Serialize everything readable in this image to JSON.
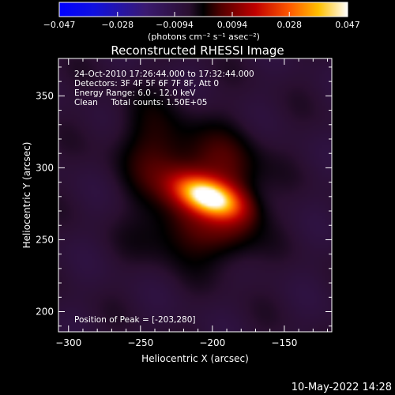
{
  "colorbar": {
    "ticks": [
      "−0.047",
      "−0.028",
      "−0.0094",
      "0.0094",
      "0.028",
      "0.047"
    ],
    "tick_values": [
      -0.047,
      -0.028,
      -0.0094,
      0.0094,
      0.028,
      0.047
    ],
    "range": [
      -0.047,
      0.047
    ],
    "units": "(photons cm⁻² s⁻¹ asec⁻²)"
  },
  "image": {
    "title": "Reconstructed RHESSI Image",
    "info": [
      "24-Oct-2010 17:26:44.000 to 17:32:44.000",
      "Detectors: 3F 4F 5F 6F 7F 8F, Att 0",
      "Energy Range: 6.0 - 12.0 keV",
      "Clean     Total counts: 1.50E+05"
    ],
    "peak_text": "Position of Peak = [-203,280]"
  },
  "footer": {
    "timestamp": "10-May-2022 14:28"
  },
  "colors": {
    "background": "#000000",
    "text": "#ffffff",
    "colormap": "blue-purple-red-yellow-white"
  },
  "chart_data": {
    "type": "heatmap",
    "title": "Reconstructed RHESSI Image",
    "xlabel": "Heliocentric X (arcsec)",
    "ylabel": "Heliocentric Y (arcsec)",
    "xlim": [
      -307,
      -117
    ],
    "ylim": [
      186,
      376
    ],
    "xticks": [
      -300,
      -250,
      -200,
      -150
    ],
    "yticks": [
      200,
      250,
      300,
      350
    ],
    "xtick_labels": [
      "−300",
      "−250",
      "−200",
      "−150"
    ],
    "ytick_labels": [
      "200",
      "250",
      "300",
      "350"
    ],
    "peak": {
      "x": -203,
      "y": 280,
      "value": 0.047
    },
    "sources": [
      {
        "x": -203,
        "y": 280,
        "sx": 16,
        "sy": 8,
        "angle_deg": -20,
        "amp": 0.047
      },
      {
        "x": -232,
        "y": 302,
        "sx": 20,
        "sy": 30,
        "angle_deg": 25,
        "amp": 0.011
      },
      {
        "x": -190,
        "y": 300,
        "sx": 18,
        "sy": 20,
        "angle_deg": 0,
        "amp": 0.009
      },
      {
        "x": -215,
        "y": 255,
        "sx": 24,
        "sy": 16,
        "angle_deg": 0,
        "amp": 0.008
      },
      {
        "x": -185,
        "y": 265,
        "sx": 14,
        "sy": 22,
        "angle_deg": 0,
        "amp": 0.007
      }
    ],
    "background_level": -0.006
  }
}
